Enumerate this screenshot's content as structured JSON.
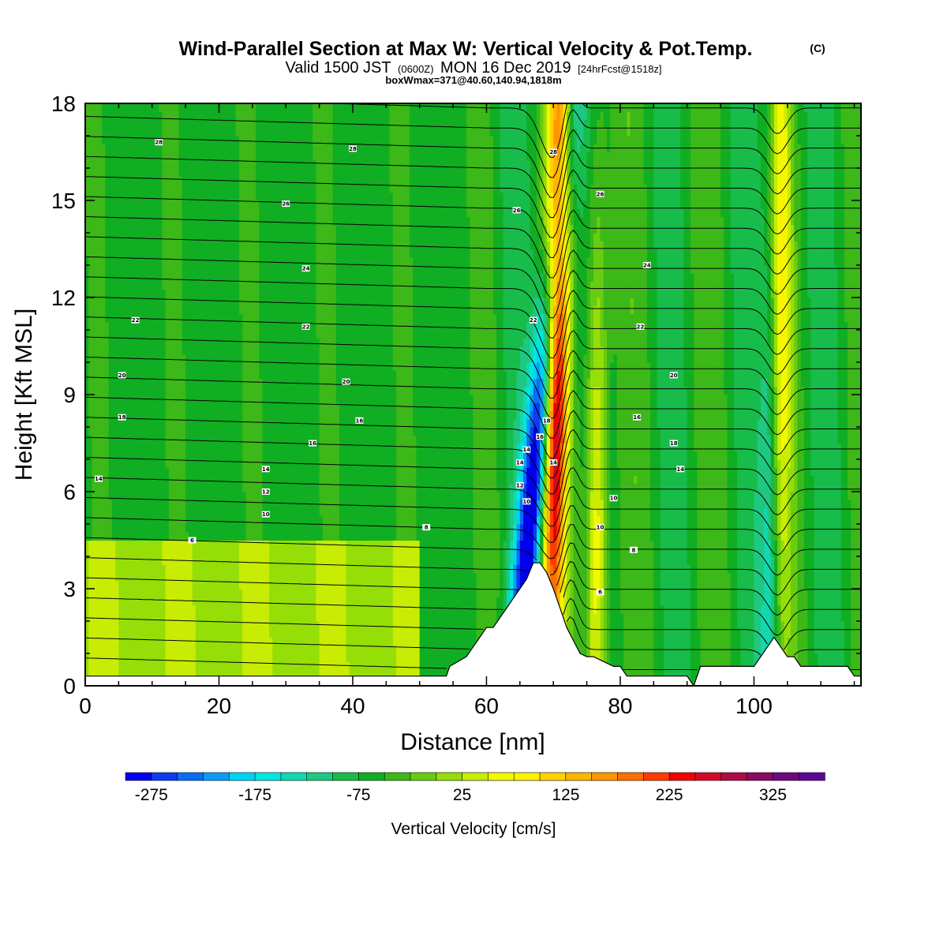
{
  "title": {
    "main": "Wind-Parallel Section at Max W: Vertical Velocity & Pot.Temp.",
    "copyright": "(C)",
    "valid_prefix": "Valid 1500 JST",
    "valid_utc": "(0600Z)",
    "valid_date": "MON 16 Dec 2019",
    "forecast": "[24hrFcst@1518z]",
    "boxline": "boxWmax=371@40.60,140.94,1818m"
  },
  "chart_data": {
    "type": "heatmap",
    "xlabel": "Distance [nm]",
    "ylabel": "Height [Kft MSL]",
    "xlim": [
      0,
      116
    ],
    "ylim": [
      0,
      18
    ],
    "x_ticks": [
      0,
      20,
      40,
      60,
      80,
      100
    ],
    "y_ticks": [
      0,
      3,
      6,
      9,
      12,
      15,
      18
    ],
    "grid": false,
    "field": "Vertical Velocity",
    "overlay": "Potential Temperature contours (deg C)",
    "colorbar": {
      "label": "Vertical Velocity [cm/s]",
      "tick_labels": [
        "-275",
        "-175",
        "-75",
        "25",
        "125",
        "225",
        "325"
      ],
      "min": -300,
      "max": 375,
      "step": 25,
      "colors": [
        "#0000ee",
        "#0d3cf0",
        "#0a6cf5",
        "#0a9cf5",
        "#00d2f5",
        "#00e8de",
        "#12d8b0",
        "#1ec880",
        "#18bc4a",
        "#10ae22",
        "#3cb818",
        "#68cc10",
        "#96de08",
        "#c8ec04",
        "#f2f800",
        "#fff000",
        "#ffd200",
        "#ffb400",
        "#ff9600",
        "#ff6e00",
        "#ff3c00",
        "#ee0000",
        "#d00a28",
        "#ae0a48",
        "#8a0a60",
        "#6e087e",
        "#5a0896"
      ]
    },
    "terrain": {
      "x": [
        0,
        0.5,
        54,
        54.5,
        57,
        58,
        59,
        60,
        61,
        62,
        63,
        64,
        65,
        66,
        67,
        68,
        69,
        70,
        71,
        72,
        73,
        74,
        75,
        76,
        77,
        78,
        79,
        80,
        81,
        90,
        91,
        92,
        100,
        101,
        102,
        103,
        104,
        105,
        106,
        107,
        108,
        114,
        115,
        116
      ],
      "height": [
        0.3,
        0.3,
        0.3,
        0.6,
        0.9,
        1.2,
        1.5,
        1.8,
        1.8,
        2.1,
        2.4,
        2.7,
        3.0,
        3.3,
        3.8,
        3.8,
        3.5,
        3.0,
        2.4,
        1.8,
        1.4,
        1.0,
        0.9,
        0.9,
        0.8,
        0.7,
        0.6,
        0.6,
        0.3,
        0.3,
        0.0,
        0.6,
        0.6,
        0.9,
        1.2,
        1.5,
        1.2,
        0.9,
        0.9,
        0.6,
        0.6,
        0.6,
        0.3,
        0.3
      ]
    },
    "w_features": [
      {
        "name": "main-updraft",
        "center": [
          70.5,
          11
        ],
        "x_halfwidth": 1.8,
        "value": 360
      },
      {
        "name": "main-downdraft",
        "center": [
          67.5,
          7
        ],
        "x_halfwidth": 2.0,
        "value": -260
      },
      {
        "name": "lee-updraft",
        "center": [
          76.5,
          4
        ],
        "x_halfwidth": 1.6,
        "value": 150
      },
      {
        "name": "east-ridge-updraft",
        "center": [
          104,
          12
        ],
        "x_halfwidth": 1.6,
        "value": 120
      },
      {
        "name": "east-ridge-downdraft",
        "center": [
          102.5,
          3
        ],
        "x_halfwidth": 1.5,
        "value": -90
      }
    ],
    "theta_contours": {
      "interval": 1,
      "min": 3,
      "max": 31,
      "labels": [
        {
          "x": 11,
          "y": 16.8,
          "text": "28"
        },
        {
          "x": 40,
          "y": 16.6,
          "text": "28"
        },
        {
          "x": 70,
          "y": 16.5,
          "text": "28"
        },
        {
          "x": 30,
          "y": 14.9,
          "text": "26"
        },
        {
          "x": 64.5,
          "y": 14.7,
          "text": "26"
        },
        {
          "x": 77,
          "y": 15.2,
          "text": "26"
        },
        {
          "x": 33,
          "y": 12.9,
          "text": "24"
        },
        {
          "x": 84,
          "y": 13.0,
          "text": "24"
        },
        {
          "x": 7.5,
          "y": 11.3,
          "text": "22"
        },
        {
          "x": 33,
          "y": 11.1,
          "text": "22"
        },
        {
          "x": 67,
          "y": 11.3,
          "text": "22"
        },
        {
          "x": 83,
          "y": 11.1,
          "text": "22"
        },
        {
          "x": 5.5,
          "y": 9.6,
          "text": "20"
        },
        {
          "x": 39,
          "y": 9.4,
          "text": "20"
        },
        {
          "x": 88,
          "y": 9.6,
          "text": "20"
        },
        {
          "x": 5.5,
          "y": 8.3,
          "text": "18"
        },
        {
          "x": 41,
          "y": 8.2,
          "text": "16"
        },
        {
          "x": 69,
          "y": 8.2,
          "text": "18"
        },
        {
          "x": 82.5,
          "y": 8.3,
          "text": "16"
        },
        {
          "x": 34,
          "y": 7.5,
          "text": "16"
        },
        {
          "x": 68,
          "y": 7.7,
          "text": "16"
        },
        {
          "x": 66,
          "y": 7.3,
          "text": "14"
        },
        {
          "x": 70,
          "y": 6.9,
          "text": "14"
        },
        {
          "x": 88,
          "y": 7.5,
          "text": "18"
        },
        {
          "x": 2,
          "y": 6.4,
          "text": "14"
        },
        {
          "x": 27,
          "y": 6.7,
          "text": "14"
        },
        {
          "x": 65,
          "y": 6.9,
          "text": "14"
        },
        {
          "x": 89,
          "y": 6.7,
          "text": "14"
        },
        {
          "x": 27,
          "y": 6.0,
          "text": "12"
        },
        {
          "x": 65,
          "y": 6.2,
          "text": "12"
        },
        {
          "x": 27,
          "y": 5.3,
          "text": "10"
        },
        {
          "x": 66,
          "y": 5.7,
          "text": "10"
        },
        {
          "x": 79,
          "y": 5.8,
          "text": "10"
        },
        {
          "x": 51,
          "y": 4.9,
          "text": "8"
        },
        {
          "x": 77,
          "y": 4.9,
          "text": "10"
        },
        {
          "x": 16,
          "y": 4.5,
          "text": "6"
        },
        {
          "x": 82,
          "y": 4.2,
          "text": "8"
        },
        {
          "x": 77,
          "y": 2.9,
          "text": "6"
        }
      ]
    }
  }
}
